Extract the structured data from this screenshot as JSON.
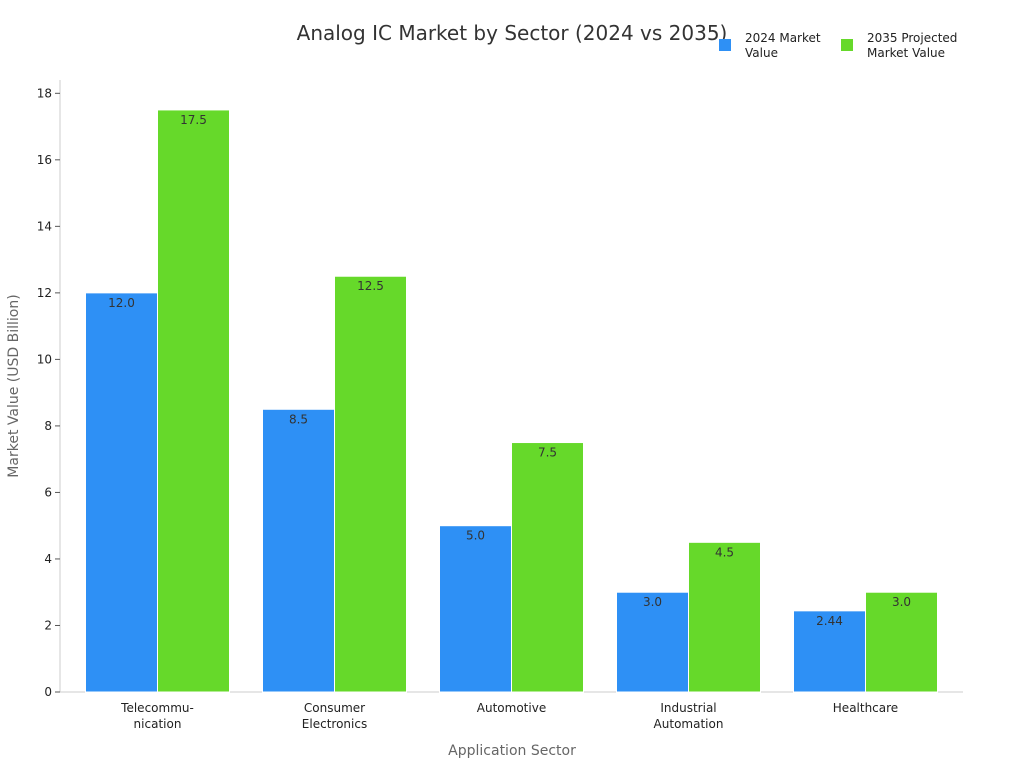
{
  "chart_data": {
    "type": "bar",
    "title": "Analog IC Market by Sector (2024 vs 2035)",
    "xlabel": "Application Sector",
    "ylabel": "Market Value (USD Billion)",
    "ylim": [
      0,
      18.4
    ],
    "yticks": [
      0,
      2,
      4,
      6,
      8,
      10,
      12,
      14,
      16,
      18
    ],
    "grid": false,
    "legend_position": "top-right",
    "categories": [
      [
        "Telecommu-",
        "nication"
      ],
      [
        "Consumer",
        "Electronics"
      ],
      [
        "Automotive"
      ],
      [
        "Industrial",
        "Automation"
      ],
      [
        "Healthcare"
      ]
    ],
    "series": [
      {
        "name": [
          "2024 Market",
          "Value"
        ],
        "color": "#2e90f5",
        "values": [
          12.0,
          8.5,
          5.0,
          3.0,
          2.44
        ],
        "labels": [
          "12.0",
          "8.5",
          "5.0",
          "3.0",
          "2.44"
        ]
      },
      {
        "name": [
          "2035 Projected",
          "Market Value"
        ],
        "color": "#66d92a",
        "values": [
          17.5,
          12.5,
          7.5,
          4.5,
          3.0
        ],
        "labels": [
          "17.5",
          "12.5",
          "7.5",
          "4.5",
          "3.0"
        ]
      }
    ]
  }
}
